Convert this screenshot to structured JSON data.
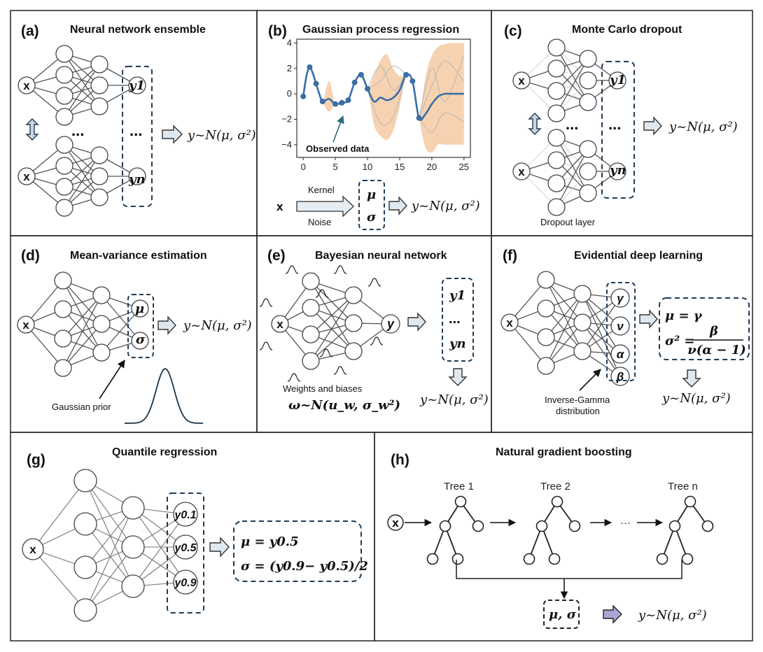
{
  "panels": [
    {
      "letter": "(a)",
      "title": "Neural network ensemble",
      "input": "x",
      "outputs": [
        "y1",
        "yn"
      ],
      "dots": "...",
      "result": "y~N(μ, σ²)"
    },
    {
      "letter": "(b)",
      "title": "Gaussian process regression",
      "input": "x",
      "kernel_label": "Kernel",
      "noise_label": "Noise",
      "outputs": [
        "μ",
        "σ"
      ],
      "annotation": "Observed data",
      "result": "y~N(μ, σ²)"
    },
    {
      "letter": "(c)",
      "title": "Monte Carlo dropout",
      "input": "x",
      "outputs": [
        "y1",
        "yn"
      ],
      "dots": "...",
      "layer_label": "Dropout layer",
      "result": "y~N(μ, σ²)"
    },
    {
      "letter": "(d)",
      "title": "Mean-variance estimation",
      "input": "x",
      "outputs": [
        "μ",
        "σ"
      ],
      "prior_label": "Gaussian prior",
      "result": "y~N(μ, σ²)"
    },
    {
      "letter": "(e)",
      "title": "Bayesian neural network",
      "input": "x",
      "output": "y",
      "samples": [
        "y1",
        "...",
        "yn"
      ],
      "weights_label": "Weights and biases",
      "weights_formula": "ω~N(u_w, σ_w²)",
      "result": "y~N(μ, σ²)"
    },
    {
      "letter": "(f)",
      "title": "Evidential deep learning",
      "input": "x",
      "outputs": [
        "γ",
        "ν",
        "α",
        "β"
      ],
      "dist_label_1": "Inverse-Gamma",
      "dist_label_2": "distribution",
      "formula_mu": "μ = γ",
      "formula_sigma_lhs": "σ² =",
      "formula_num": "β",
      "formula_den": "ν(α − 1)",
      "result": "y~N(μ, σ²)"
    },
    {
      "letter": "(g)",
      "title": "Quantile regression",
      "input": "x",
      "outputs": [
        "y0.1",
        "y0.5",
        "y0.9"
      ],
      "formula_mu": "μ = y0.5",
      "formula_sigma": "σ = (y0.9− y0.5)/2"
    },
    {
      "letter": "(h)",
      "title": "Natural gradient boosting",
      "input": "x",
      "trees": [
        "Tree 1",
        "Tree 2",
        "Tree n"
      ],
      "dots": "···",
      "output": "μ, σ",
      "result": "y~N(μ, σ²)"
    }
  ],
  "chart_data": {
    "type": "line",
    "title": "",
    "xlabel": "",
    "ylabel": "",
    "xlim": [
      -1,
      26
    ],
    "ylim": [
      -5,
      4.3
    ],
    "xticks": [
      0,
      5,
      10,
      15,
      20,
      25
    ],
    "yticks": [
      4,
      2,
      0,
      -2,
      -4
    ],
    "grid": false,
    "observed": {
      "x": [
        0,
        1,
        2,
        3,
        5,
        6,
        7,
        8,
        9,
        10,
        16,
        17,
        18
      ],
      "y": [
        -0.2,
        2.1,
        0.8,
        -0.6,
        -0.8,
        -0.7,
        -0.5,
        0.9,
        1.5,
        0.4,
        1.5,
        1.0,
        -1.9
      ]
    },
    "mean": {
      "x": [
        0,
        0.5,
        1,
        1.5,
        2,
        2.5,
        3,
        4,
        5,
        6,
        7,
        8,
        9,
        10,
        11,
        12,
        13,
        14,
        15,
        16,
        17,
        18,
        19,
        20,
        21,
        22,
        23,
        24,
        25
      ],
      "y": [
        -0.2,
        1.4,
        2.1,
        1.6,
        0.8,
        0.0,
        -0.6,
        -0.4,
        -0.8,
        -0.7,
        -0.5,
        0.9,
        1.5,
        0.4,
        -0.6,
        -0.3,
        -0.5,
        -0.3,
        0.3,
        1.5,
        1.0,
        -1.9,
        -1.6,
        -0.8,
        -0.2,
        0.0,
        0.0,
        0.0,
        0.0
      ]
    },
    "band": {
      "x": [
        0,
        1,
        2,
        3,
        4,
        5,
        6,
        7,
        8,
        9,
        10,
        11,
        12,
        13,
        14,
        15,
        16,
        17,
        18,
        19,
        20,
        21,
        22,
        23,
        24,
        25
      ],
      "upper": [
        -0.2,
        2.1,
        0.8,
        -0.6,
        1.0,
        -0.8,
        -0.7,
        -0.5,
        0.9,
        1.5,
        0.4,
        1.4,
        2.6,
        3.1,
        2.0,
        1.4,
        1.5,
        1.0,
        -1.9,
        1.3,
        3.0,
        3.7,
        3.9,
        4.0,
        4.0,
        4.0
      ],
      "lower": [
        -0.2,
        2.1,
        0.8,
        -0.6,
        -1.4,
        -0.8,
        -0.7,
        -0.5,
        0.9,
        1.5,
        0.4,
        -2.4,
        -3.3,
        -3.6,
        -2.9,
        -1.0,
        1.5,
        1.0,
        -1.9,
        -4.2,
        -4.6,
        -4.0,
        -4.0,
        -4.0,
        -4.0,
        -4.0
      ]
    },
    "samples": [
      {
        "x": [
          10,
          12,
          14,
          16
        ],
        "y": [
          0.4,
          2.2,
          0.3,
          1.5
        ]
      },
      {
        "x": [
          10,
          12,
          14,
          16
        ],
        "y": [
          0.4,
          -2.3,
          -1.8,
          1.5
        ]
      },
      {
        "x": [
          10,
          12,
          14,
          16
        ],
        "y": [
          0.4,
          1.0,
          2.2,
          1.5
        ]
      },
      {
        "x": [
          18,
          20,
          22,
          25
        ],
        "y": [
          -1.9,
          2.0,
          -0.6,
          3.0
        ]
      },
      {
        "x": [
          18,
          20,
          22,
          25
        ],
        "y": [
          -1.9,
          -3.0,
          -1.5,
          -2.2
        ]
      },
      {
        "x": [
          18,
          20,
          22,
          25
        ],
        "y": [
          -1.9,
          0.6,
          2.6,
          1.0
        ]
      }
    ],
    "colors": {
      "mean": "#3a6ea5",
      "points": "#3a6ea5",
      "band": "#f6d2b0",
      "samples": "#b8b8b8"
    }
  }
}
